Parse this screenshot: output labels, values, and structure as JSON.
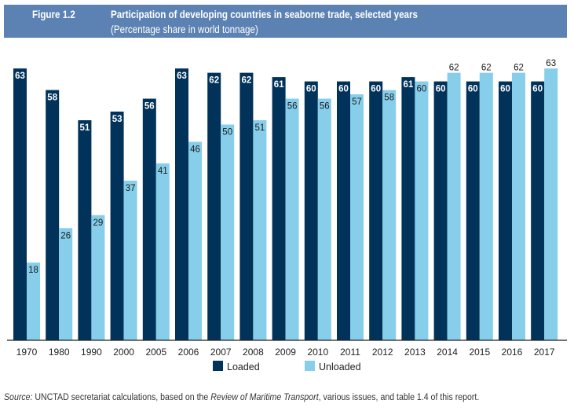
{
  "header": {
    "figure_number": "Figure 1.2",
    "title": "Participation of developing countries in seaborne trade, selected years",
    "subtitle": "(Percentage share in world tonnage)"
  },
  "source": {
    "label": "Source:",
    "text1": " UNCTAD secretariat calculations, based on the ",
    "italic": "Review of Maritime Transport",
    "text2": ", various issues, and table 1.4 of this report."
  },
  "colors": {
    "header_bg": "#5b82b3",
    "loaded": "#00325a",
    "unloaded": "#87ceeb"
  },
  "chart_data": {
    "type": "bar",
    "title": "Participation of developing countries in seaborne trade, selected years",
    "subtitle": "(Percentage share in world tonnage)",
    "xlabel": "",
    "ylabel": "Percentage share in world tonnage",
    "ylim": [
      0,
      63
    ],
    "grid": false,
    "legend_position": "bottom-center",
    "categories": [
      "1970",
      "1980",
      "1990",
      "2000",
      "2005",
      "2006",
      "2007",
      "2008",
      "2009",
      "2010",
      "2011",
      "2012",
      "2013",
      "2014",
      "2015",
      "2016",
      "2017"
    ],
    "series": [
      {
        "name": "Loaded",
        "color": "#00325a",
        "values": [
          63,
          58,
          51,
          53,
          56,
          63,
          62,
          62,
          61,
          60,
          60,
          60,
          61,
          60,
          60,
          60,
          60
        ]
      },
      {
        "name": "Unloaded",
        "color": "#87ceeb",
        "values": [
          18,
          26,
          29,
          37,
          41,
          46,
          50,
          51,
          56,
          56,
          57,
          58,
          60,
          62,
          62,
          62,
          63
        ]
      }
    ]
  }
}
